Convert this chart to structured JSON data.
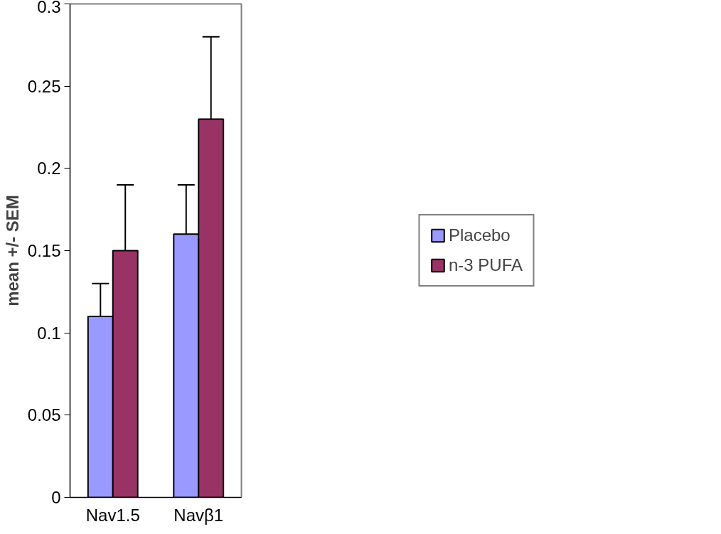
{
  "chart_data": {
    "type": "bar",
    "ylabel": "mean +/- SEM",
    "categories": [
      "Nav1.5",
      "Navβ1"
    ],
    "series": [
      {
        "name": "Placebo",
        "color": "#9999ff",
        "values": [
          0.11,
          0.16
        ],
        "errors": [
          [
            0.11,
            0.13
          ],
          [
            0.16,
            0.19
          ]
        ]
      },
      {
        "name": "n-3 PUFA",
        "color": "#993366",
        "values": [
          0.15,
          0.23
        ],
        "errors": [
          [
            0.15,
            0.19
          ],
          [
            0.23,
            0.28
          ]
        ]
      }
    ],
    "ylim": [
      0,
      0.3
    ],
    "yticks": [
      0,
      0.05,
      0.1,
      0.15,
      0.2,
      0.25,
      0.3
    ],
    "grid": false,
    "legend": "right"
  }
}
